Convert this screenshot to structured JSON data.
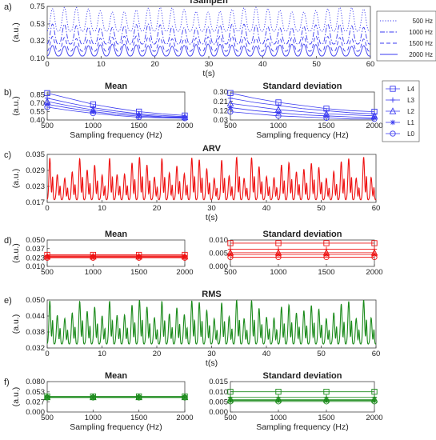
{
  "colors": {
    "blue": "#3a3af0",
    "red": "#ee1111",
    "green": "#1a8a1a",
    "axis": "#444444"
  },
  "chart_data": [
    {
      "id": "a",
      "panel_label": "a)",
      "type": "line",
      "title": "fSampEn",
      "xlabel": "t(s)",
      "ylabel": "(a.u.)",
      "xlim": [
        0,
        60
      ],
      "ylim": [
        0.1,
        0.75
      ],
      "xticks": [
        "0",
        "10",
        "20",
        "30",
        "40",
        "50",
        "60"
      ],
      "yticks": [
        "0.10",
        "0.32",
        "0.53",
        "0.75"
      ],
      "legend": "right",
      "cycles": 27,
      "series": [
        {
          "name": "500 Hz",
          "style": "dotted",
          "low": 0.44,
          "high": 0.74
        },
        {
          "name": "1000 Hz",
          "style": "dashdot",
          "low": 0.28,
          "high": 0.53
        },
        {
          "name": "1500 Hz",
          "style": "dashed",
          "low": 0.19,
          "high": 0.38
        },
        {
          "name": "2000 Hz",
          "style": "solid",
          "low": 0.13,
          "high": 0.28
        }
      ]
    },
    {
      "id": "b_mean",
      "panel_label": "b)",
      "type": "line",
      "title": "Mean",
      "xlabel": "Sampling frequency (Hz)",
      "ylabel": "(a.u.)",
      "x": [
        500,
        750,
        1000,
        1250,
        1500,
        1750,
        2000
      ],
      "xlim": [
        500,
        2000
      ],
      "ylim": [
        0.4,
        0.9
      ],
      "xticks": [
        "500",
        "1000",
        "1500",
        "2000"
      ],
      "yticks": [
        "0.40",
        "0.55",
        "0.70",
        "0.85"
      ],
      "series": [
        {
          "name": "L4",
          "marker": "square",
          "values": [
            0.88,
            0.78,
            0.68,
            0.61,
            0.55,
            0.51,
            0.48
          ]
        },
        {
          "name": "L3",
          "marker": "plus",
          "values": [
            0.79,
            0.7,
            0.62,
            0.56,
            0.51,
            0.48,
            0.46
          ]
        },
        {
          "name": "L2",
          "marker": "triangle",
          "values": [
            0.73,
            0.65,
            0.58,
            0.53,
            0.49,
            0.46,
            0.45
          ]
        },
        {
          "name": "L1",
          "marker": "asterisk",
          "values": [
            0.68,
            0.61,
            0.55,
            0.5,
            0.47,
            0.45,
            0.44
          ]
        },
        {
          "name": "L0",
          "marker": "circle",
          "values": [
            0.63,
            0.57,
            0.52,
            0.48,
            0.45,
            0.44,
            0.43
          ]
        }
      ]
    },
    {
      "id": "b_sd",
      "type": "line",
      "title": "Standard deviation",
      "xlabel": "Sampling frequency (Hz)",
      "x": [
        500,
        750,
        1000,
        1250,
        1500,
        1750,
        2000
      ],
      "xlim": [
        500,
        2000
      ],
      "ylim": [
        0.03,
        0.3
      ],
      "xticks": [
        "500",
        "1000",
        "1500",
        "2000"
      ],
      "yticks": [
        "0.03",
        "0.12",
        "0.21",
        "0.30"
      ],
      "legend": "right",
      "series": [
        {
          "name": "L4",
          "marker": "square",
          "values": [
            0.29,
            0.24,
            0.2,
            0.17,
            0.14,
            0.12,
            0.11
          ]
        },
        {
          "name": "L3",
          "marker": "plus",
          "values": [
            0.24,
            0.2,
            0.17,
            0.14,
            0.12,
            0.1,
            0.09
          ]
        },
        {
          "name": "L2",
          "marker": "triangle",
          "values": [
            0.19,
            0.16,
            0.13,
            0.11,
            0.09,
            0.08,
            0.07
          ]
        },
        {
          "name": "L1",
          "marker": "asterisk",
          "values": [
            0.15,
            0.12,
            0.1,
            0.08,
            0.07,
            0.06,
            0.05
          ]
        },
        {
          "name": "L0",
          "marker": "circle",
          "values": [
            0.11,
            0.09,
            0.07,
            0.06,
            0.05,
            0.04,
            0.04
          ]
        }
      ]
    },
    {
      "id": "c",
      "panel_label": "c)",
      "type": "line",
      "title": "ARV",
      "xlabel": "t(s)",
      "ylabel": "(a.u.)",
      "xlim": [
        0,
        60
      ],
      "ylim": [
        0.017,
        0.035
      ],
      "xticks": [
        "0",
        "10",
        "20",
        "30",
        "40",
        "50",
        "60"
      ],
      "yticks": [
        "0.017",
        "0.023",
        "0.029",
        "0.035"
      ],
      "cycles": 44,
      "baseline": 0.018,
      "peak_min": 0.026,
      "peak_max": 0.034
    },
    {
      "id": "d_mean",
      "panel_label": "d)",
      "type": "line",
      "title": "Mean",
      "xlabel": "",
      "ylabel": "(a.u.)",
      "x": [
        500,
        750,
        1000,
        1250,
        1500,
        1750,
        2000
      ],
      "xlim": [
        500,
        2000
      ],
      "ylim": [
        0.01,
        0.05
      ],
      "xticks": [
        "500",
        "1000",
        "1500",
        "2000"
      ],
      "yticks": [
        "0.010",
        "0.023",
        "0.037",
        "0.050"
      ],
      "series": [
        {
          "name": "L4",
          "marker": "square",
          "values": [
            0.0275,
            0.0275,
            0.0275,
            0.0275,
            0.0275,
            0.0275,
            0.0275
          ]
        },
        {
          "name": "L3",
          "marker": "plus",
          "values": [
            0.026,
            0.026,
            0.026,
            0.026,
            0.026,
            0.026,
            0.026
          ]
        },
        {
          "name": "L2",
          "marker": "triangle",
          "values": [
            0.025,
            0.025,
            0.025,
            0.025,
            0.025,
            0.025,
            0.025
          ]
        },
        {
          "name": "L1",
          "marker": "asterisk",
          "values": [
            0.024,
            0.024,
            0.024,
            0.024,
            0.024,
            0.024,
            0.024
          ]
        },
        {
          "name": "L0",
          "marker": "circle",
          "values": [
            0.023,
            0.023,
            0.023,
            0.023,
            0.023,
            0.023,
            0.023
          ]
        }
      ]
    },
    {
      "id": "d_sd",
      "type": "line",
      "title": "Standard deviation",
      "xlabel": "",
      "x": [
        500,
        750,
        1000,
        1250,
        1500,
        1750,
        2000
      ],
      "xlim": [
        500,
        2000
      ],
      "ylim": [
        0.0,
        0.01
      ],
      "xticks": [
        "500",
        "1000",
        "1500",
        "2000"
      ],
      "yticks": [
        "0.000",
        "0.005",
        "0.010"
      ],
      "series": [
        {
          "name": "L4",
          "marker": "square",
          "values": [
            0.0088,
            0.0088,
            0.0088,
            0.0088,
            0.0088,
            0.0088,
            0.0088
          ]
        },
        {
          "name": "L3",
          "marker": "plus",
          "values": [
            0.0065,
            0.0065,
            0.0065,
            0.0065,
            0.0065,
            0.0065,
            0.0065
          ]
        },
        {
          "name": "L2",
          "marker": "triangle",
          "values": [
            0.0052,
            0.0052,
            0.0052,
            0.0052,
            0.0052,
            0.0052,
            0.0052
          ]
        },
        {
          "name": "L1",
          "marker": "asterisk",
          "values": [
            0.0045,
            0.0045,
            0.0045,
            0.0045,
            0.0045,
            0.0045,
            0.0045
          ]
        },
        {
          "name": "L0",
          "marker": "circle",
          "values": [
            0.0035,
            0.0035,
            0.0035,
            0.0035,
            0.0035,
            0.0035,
            0.0035
          ]
        }
      ]
    },
    {
      "id": "e",
      "panel_label": "e)",
      "type": "line",
      "title": "RMS",
      "xlabel": "t(s)",
      "ylabel": "(a.u.)",
      "xlim": [
        0,
        60
      ],
      "ylim": [
        0.032,
        0.05
      ],
      "xticks": [
        "0",
        "10",
        "20",
        "30",
        "40",
        "50",
        "60"
      ],
      "yticks": [
        "0.032",
        "0.038",
        "0.044",
        "0.050"
      ],
      "cycles": 44,
      "baseline": 0.0335,
      "peak_min": 0.043,
      "peak_max": 0.05
    },
    {
      "id": "f_mean",
      "panel_label": "f)",
      "type": "line",
      "title": "Mean",
      "xlabel": "Sampling frequency (Hz)",
      "ylabel": "(a.u.)",
      "x": [
        500,
        750,
        1000,
        1250,
        1500,
        1750,
        2000
      ],
      "xlim": [
        500,
        2000
      ],
      "ylim": [
        0.0,
        0.08
      ],
      "xticks": [
        "500",
        "1000",
        "1500",
        "2000"
      ],
      "yticks": [
        "0.000",
        "0.027",
        "0.053",
        "0.080"
      ],
      "series": [
        {
          "name": "L4",
          "marker": "square",
          "values": [
            0.041,
            0.041,
            0.041,
            0.041,
            0.041,
            0.041,
            0.041
          ]
        },
        {
          "name": "L3",
          "marker": "plus",
          "values": [
            0.04,
            0.04,
            0.04,
            0.04,
            0.04,
            0.04,
            0.04
          ]
        },
        {
          "name": "L2",
          "marker": "triangle",
          "values": [
            0.039,
            0.039,
            0.039,
            0.039,
            0.039,
            0.039,
            0.039
          ]
        },
        {
          "name": "L1",
          "marker": "asterisk",
          "values": [
            0.0385,
            0.0385,
            0.0385,
            0.0385,
            0.0385,
            0.0385,
            0.0385
          ]
        },
        {
          "name": "L0",
          "marker": "circle",
          "values": [
            0.038,
            0.038,
            0.038,
            0.038,
            0.038,
            0.038,
            0.038
          ]
        }
      ]
    },
    {
      "id": "f_sd",
      "type": "line",
      "title": "Standard deviation",
      "xlabel": "Sampling frequency (Hz)",
      "x": [
        500,
        750,
        1000,
        1250,
        1500,
        1750,
        2000
      ],
      "xlim": [
        500,
        2000
      ],
      "ylim": [
        0.0,
        0.015
      ],
      "xticks": [
        "500",
        "1000",
        "1500",
        "2000"
      ],
      "yticks": [
        "0.000",
        "0.005",
        "0.010",
        "0.015"
      ],
      "series": [
        {
          "name": "L4",
          "marker": "square",
          "values": [
            0.01,
            0.01,
            0.01,
            0.01,
            0.01,
            0.01,
            0.01
          ]
        },
        {
          "name": "L3",
          "marker": "plus",
          "values": [
            0.0073,
            0.0073,
            0.0073,
            0.0073,
            0.0073,
            0.0073,
            0.0073
          ]
        },
        {
          "name": "L2",
          "marker": "triangle",
          "values": [
            0.0062,
            0.0062,
            0.0062,
            0.0062,
            0.0062,
            0.0062,
            0.0062
          ]
        },
        {
          "name": "L1",
          "marker": "asterisk",
          "values": [
            0.0057,
            0.0057,
            0.0057,
            0.0057,
            0.0057,
            0.0057,
            0.0057
          ]
        },
        {
          "name": "L0",
          "marker": "circle",
          "values": [
            0.0052,
            0.0052,
            0.0052,
            0.0052,
            0.0052,
            0.0052,
            0.0052
          ]
        }
      ]
    }
  ]
}
